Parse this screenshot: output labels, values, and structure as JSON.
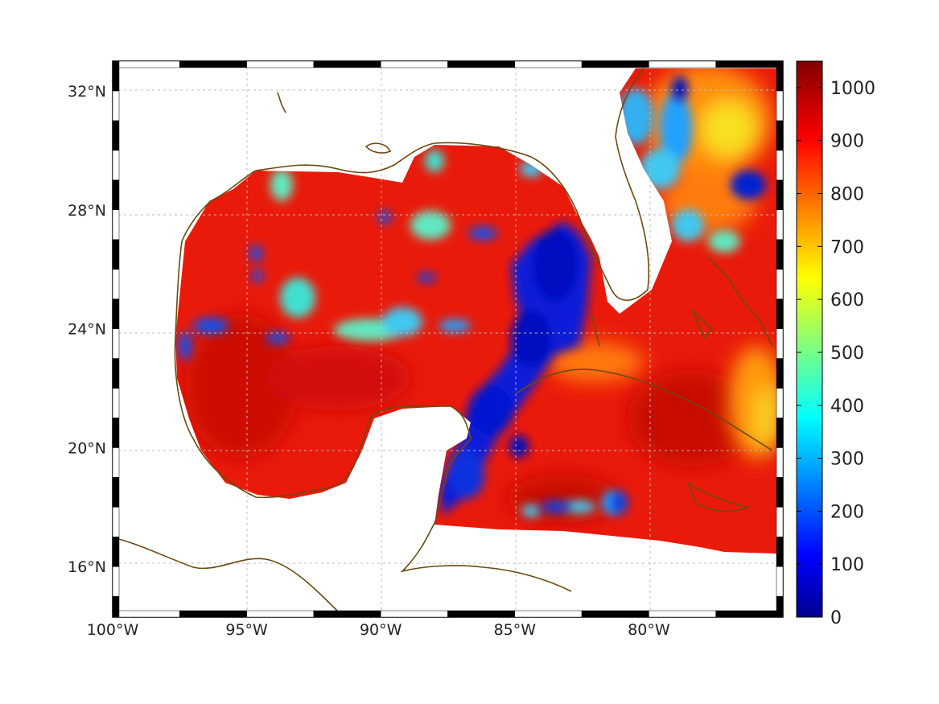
{
  "chart_data": {
    "type": "heatmap",
    "title": "",
    "xlabel": "",
    "ylabel": "",
    "x_tick_labels": [
      "100°W",
      "95°W",
      "90°W",
      "85°W",
      "80°W"
    ],
    "x_tick_values": [
      -100,
      -95,
      -90,
      -85,
      -80
    ],
    "y_tick_labels": [
      "16°N",
      "20°N",
      "24°N",
      "28°N",
      "32°N"
    ],
    "y_tick_values": [
      16,
      20,
      24,
      28,
      32
    ],
    "xlim": [
      -100,
      -75
    ],
    "ylim": [
      14.3,
      33
    ],
    "grid": true,
    "colorbar": {
      "colormap": "jet",
      "range": [
        0,
        1050
      ],
      "tick_values": [
        0,
        100,
        200,
        300,
        400,
        500,
        600,
        700,
        800,
        900,
        1000
      ],
      "tick_labels": [
        "0",
        "100",
        "200",
        "300",
        "400",
        "500",
        "600",
        "700",
        "800",
        "900",
        "1000"
      ]
    },
    "field_summary": {
      "dominant_value": 950,
      "low_value_region": "Yucatan Channel to southeastern Gulf (values 0-150)",
      "secondary_lows": "scattered patches 200-450 in central Gulf and Atlantic east of Florida"
    }
  }
}
